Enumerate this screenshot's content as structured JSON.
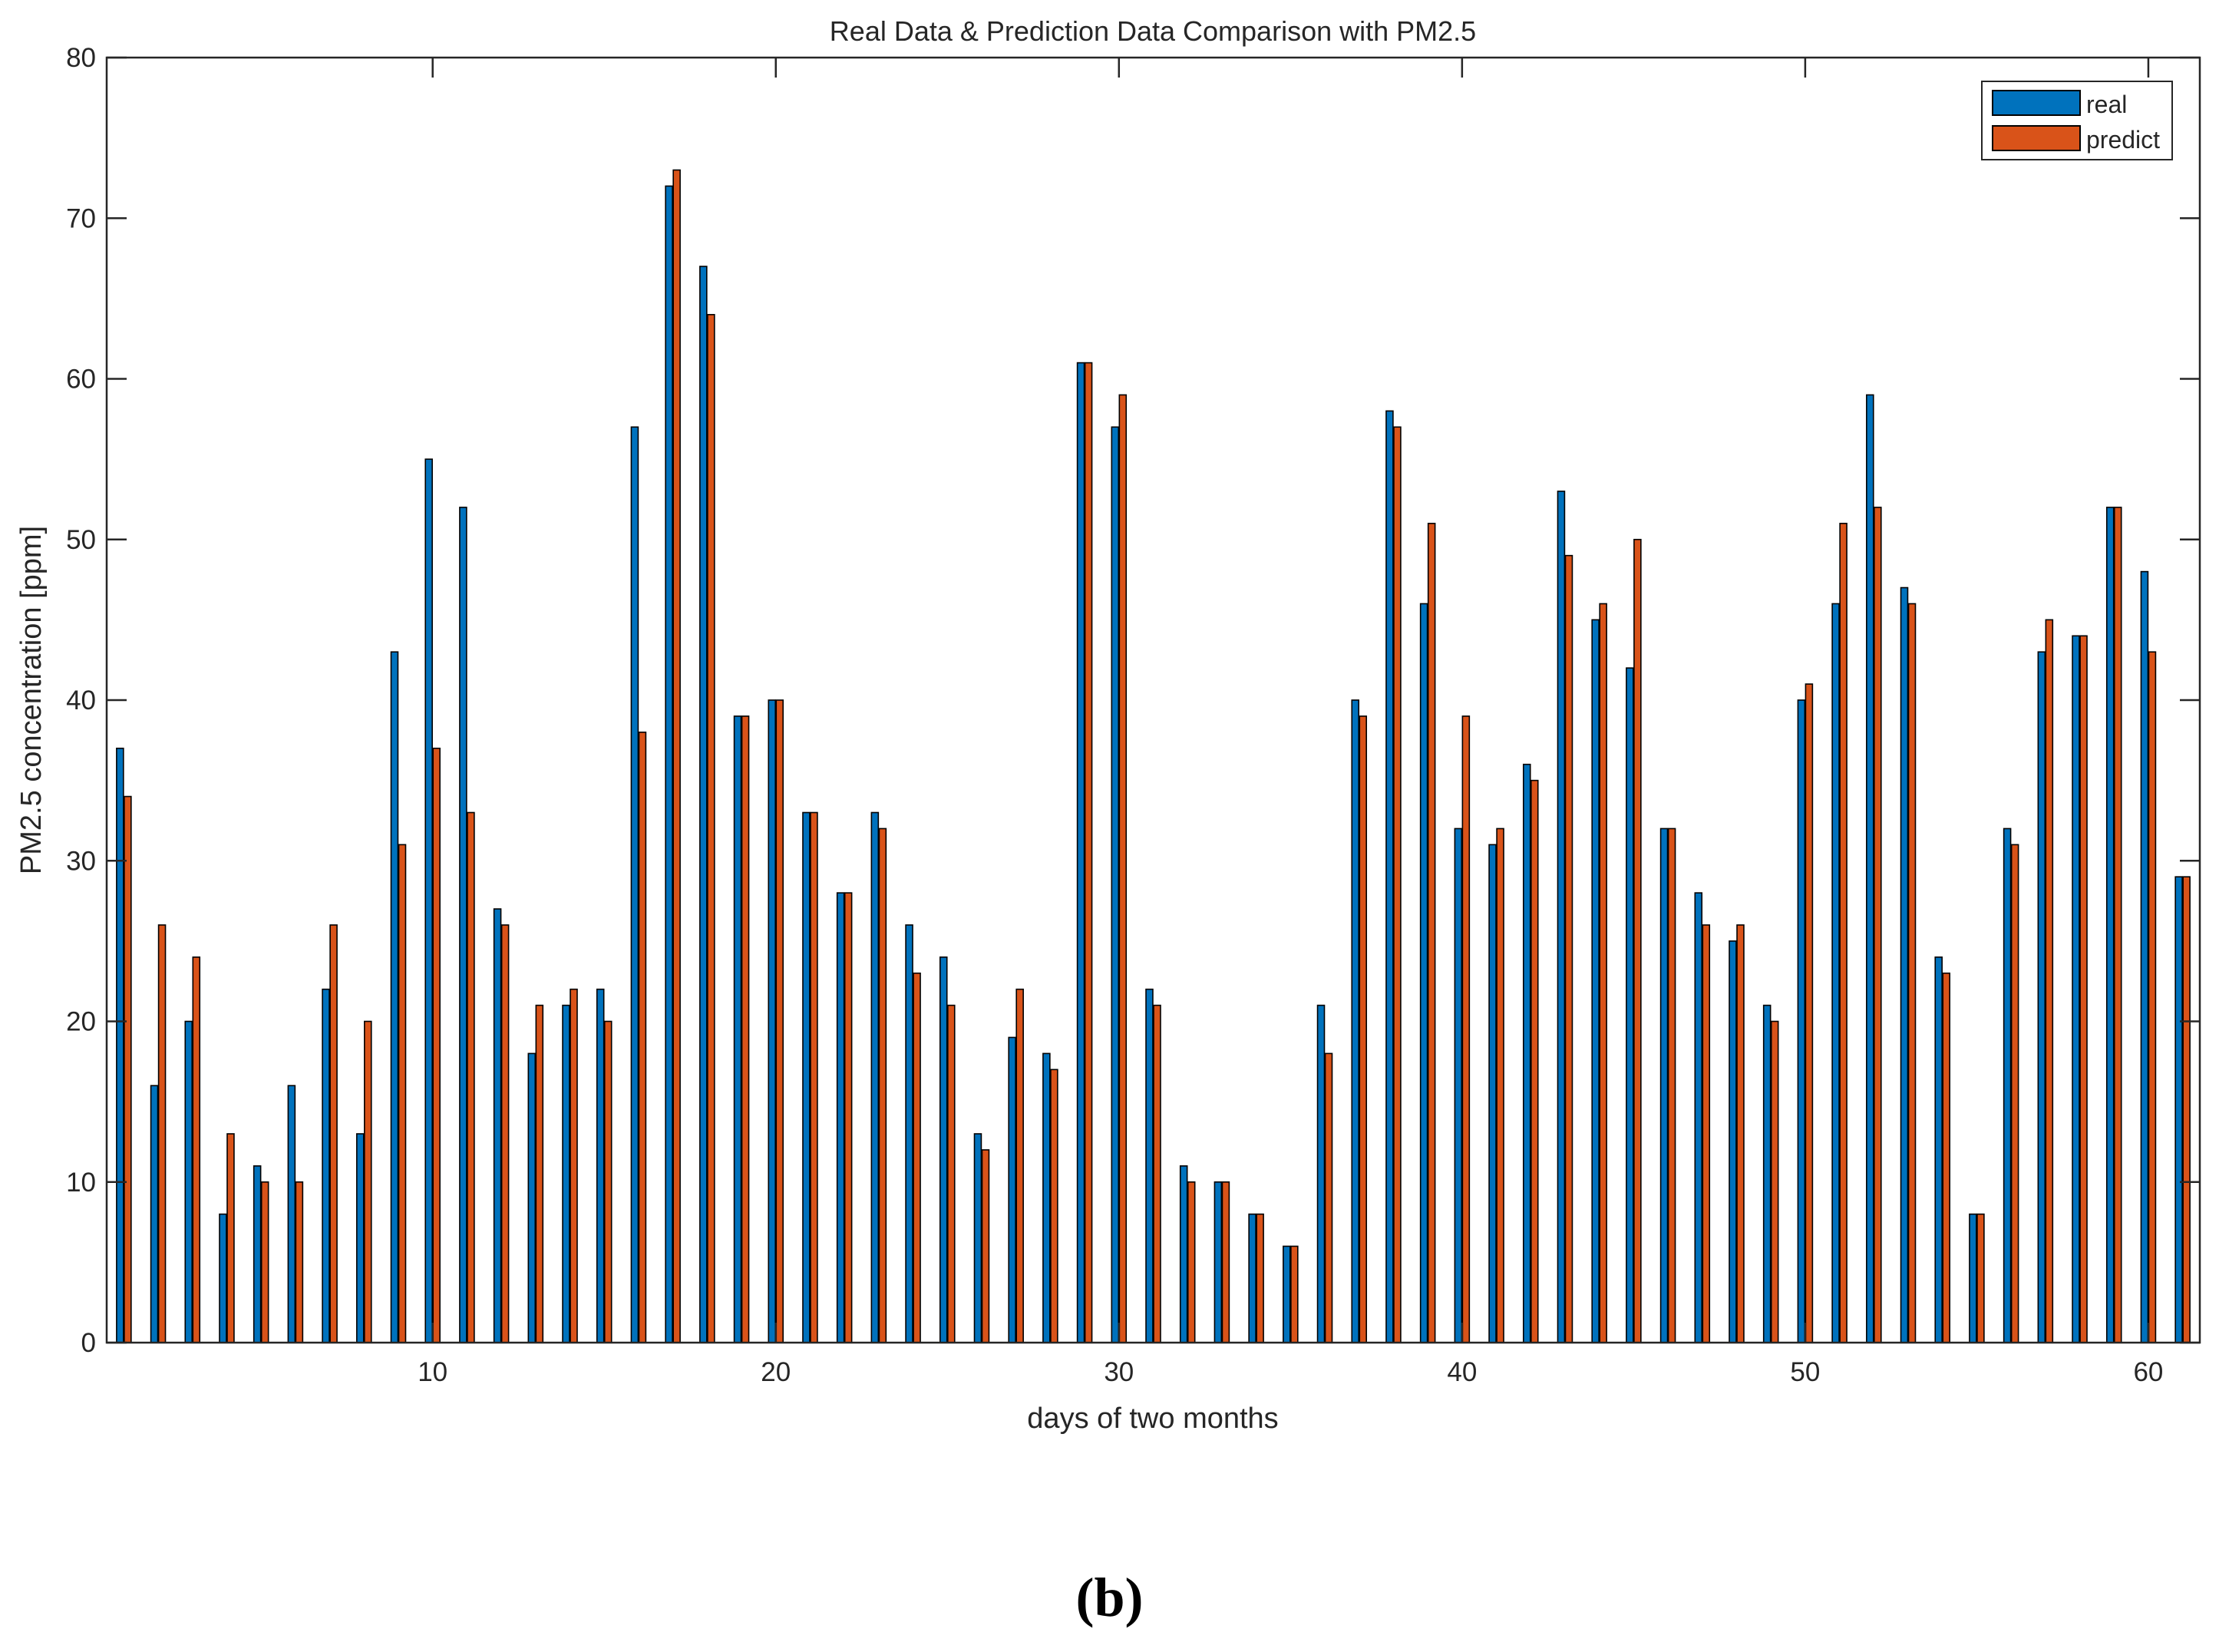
{
  "chart_data": {
    "type": "bar",
    "title": "Real Data & Prediction Data Comparison with PM2.5",
    "xlabel": "days of two months",
    "ylabel": "PM2.5 concentration [ppm]",
    "ylim": [
      0,
      80
    ],
    "xlim": [
      0.5,
      61.5
    ],
    "yticks": [
      0,
      10,
      20,
      30,
      40,
      50,
      60,
      70,
      80
    ],
    "xticks": [
      10,
      20,
      30,
      40,
      50,
      60
    ],
    "grid": false,
    "legend_position": "top-right",
    "x": [
      1,
      2,
      3,
      4,
      5,
      6,
      7,
      8,
      9,
      10,
      11,
      12,
      13,
      14,
      15,
      16,
      17,
      18,
      19,
      20,
      21,
      22,
      23,
      24,
      25,
      26,
      27,
      28,
      29,
      30,
      31,
      32,
      33,
      34,
      35,
      36,
      37,
      38,
      39,
      40,
      41,
      42,
      43,
      44,
      45,
      46,
      47,
      48,
      49,
      50,
      51,
      52,
      53,
      54,
      55,
      56,
      57,
      58,
      59,
      60,
      61
    ],
    "series": [
      {
        "name": "real",
        "color": "#0072BD",
        "values": [
          37,
          16,
          20,
          8,
          11,
          16,
          22,
          13,
          43,
          55,
          52,
          27,
          18,
          21,
          22,
          57,
          72,
          67,
          39,
          40,
          33,
          28,
          33,
          26,
          24,
          13,
          19,
          18,
          61,
          57,
          22,
          11,
          10,
          8,
          6,
          21,
          40,
          58,
          46,
          32,
          31,
          36,
          53,
          45,
          42,
          32,
          28,
          25,
          21,
          40,
          46,
          59,
          47,
          24,
          8,
          32,
          43,
          44,
          52,
          48,
          29
        ]
      },
      {
        "name": "predict",
        "color": "#D95319",
        "values": [
          34,
          26,
          24,
          13,
          10,
          10,
          26,
          20,
          31,
          37,
          33,
          26,
          21,
          22,
          20,
          38,
          73,
          64,
          39,
          40,
          33,
          28,
          32,
          23,
          21,
          12,
          22,
          17,
          61,
          59,
          21,
          10,
          10,
          8,
          6,
          18,
          39,
          57,
          51,
          39,
          32,
          35,
          49,
          46,
          50,
          32,
          26,
          26,
          20,
          41,
          51,
          52,
          46,
          23,
          8,
          31,
          45,
          44,
          52,
          43,
          29
        ]
      }
    ]
  },
  "panel_label": "(b)"
}
